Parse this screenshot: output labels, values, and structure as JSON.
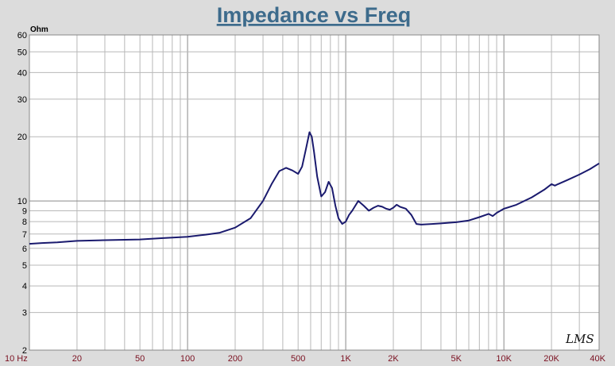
{
  "chart_data": {
    "type": "line",
    "title": "Impedance vs Freq",
    "ylabel": "Ohm",
    "xscale": "log",
    "yscale": "log",
    "xlim": [
      10,
      40000
    ],
    "ylim": [
      2,
      60
    ],
    "grid": true,
    "xticks": [
      {
        "value": 10,
        "label": "10 Hz"
      },
      {
        "value": 20,
        "label": "20"
      },
      {
        "value": 50,
        "label": "50"
      },
      {
        "value": 100,
        "label": "100"
      },
      {
        "value": 200,
        "label": "200"
      },
      {
        "value": 500,
        "label": "500"
      },
      {
        "value": 1000,
        "label": "1K"
      },
      {
        "value": 2000,
        "label": "2K"
      },
      {
        "value": 5000,
        "label": "5K"
      },
      {
        "value": 10000,
        "label": "10K"
      },
      {
        "value": 20000,
        "label": "20K"
      },
      {
        "value": 40000,
        "label": "40K"
      }
    ],
    "yticks": [
      {
        "value": 2,
        "label": "2"
      },
      {
        "value": 3,
        "label": "3"
      },
      {
        "value": 4,
        "label": "4"
      },
      {
        "value": 5,
        "label": "5"
      },
      {
        "value": 6,
        "label": "6"
      },
      {
        "value": 7,
        "label": "7"
      },
      {
        "value": 8,
        "label": "8"
      },
      {
        "value": 9,
        "label": "9"
      },
      {
        "value": 10,
        "label": "10"
      },
      {
        "value": 20,
        "label": "20"
      },
      {
        "value": 30,
        "label": "30"
      },
      {
        "value": 40,
        "label": "40"
      },
      {
        "value": 50,
        "label": "50"
      },
      {
        "value": 60,
        "label": "60"
      }
    ],
    "series": [
      {
        "color": "#1a1a6e",
        "x": [
          10,
          12,
          15,
          20,
          30,
          50,
          70,
          100,
          130,
          160,
          200,
          250,
          300,
          340,
          380,
          420,
          460,
          500,
          530,
          560,
          590,
          610,
          630,
          660,
          700,
          740,
          780,
          820,
          860,
          900,
          950,
          1000,
          1050,
          1100,
          1200,
          1300,
          1400,
          1500,
          1600,
          1700,
          1800,
          1900,
          2000,
          2100,
          2200,
          2400,
          2600,
          2800,
          3000,
          3500,
          4000,
          5000,
          6000,
          7000,
          8000,
          8500,
          9000,
          10000,
          12000,
          15000,
          18000,
          20000,
          21000,
          22000,
          25000,
          30000,
          35000,
          40000
        ],
        "y": [
          6.3,
          6.35,
          6.4,
          6.5,
          6.55,
          6.6,
          6.7,
          6.8,
          6.95,
          7.1,
          7.5,
          8.3,
          10.0,
          12.0,
          13.8,
          14.3,
          13.9,
          13.4,
          14.5,
          17.5,
          21.0,
          20.0,
          17.0,
          13.0,
          10.5,
          11.0,
          12.3,
          11.5,
          9.5,
          8.3,
          7.8,
          8.0,
          8.6,
          9.0,
          10.0,
          9.5,
          9.0,
          9.3,
          9.5,
          9.4,
          9.2,
          9.1,
          9.3,
          9.6,
          9.4,
          9.2,
          8.6,
          7.8,
          7.75,
          7.8,
          7.85,
          7.95,
          8.1,
          8.4,
          8.7,
          8.5,
          8.8,
          9.2,
          9.6,
          10.4,
          11.3,
          12.0,
          11.8,
          12.0,
          12.5,
          13.3,
          14.1,
          15.0
        ]
      }
    ]
  },
  "brand_mark": "LMS"
}
